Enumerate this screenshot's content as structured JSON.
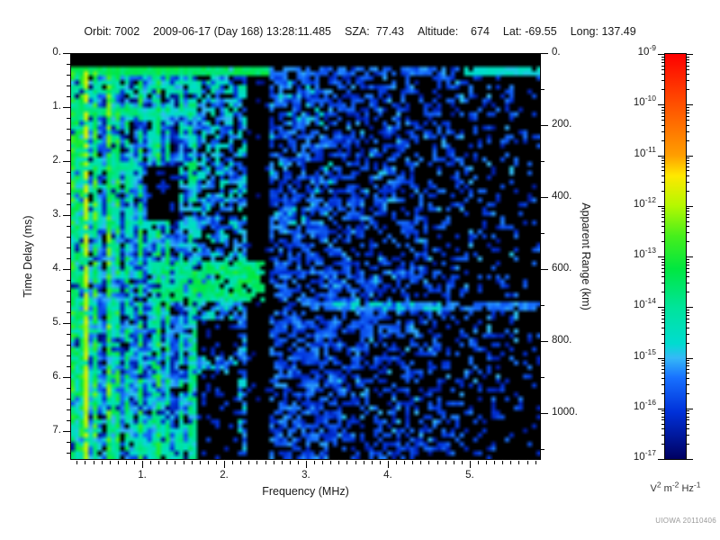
{
  "header": {
    "items": [
      "Orbit: 7002",
      "2009-06-17 (Day 168) 13:28:11.485",
      "SZA:  77.43",
      "Altitude:    674",
      "Lat: -69.55",
      "Long: 137.49"
    ]
  },
  "footer": {
    "watermark": "UIOWA 20110406"
  },
  "chart_data": {
    "type": "heatmap",
    "description": "MARSIS-style active ionospheric sounding ionogram: electric field spectral density vs frequency and time delay",
    "x": {
      "label": "Frequency (MHz)",
      "min": 0.12,
      "max": 5.87,
      "ticks": [
        1,
        2,
        3,
        4,
        5
      ],
      "tick_labels": [
        "1.",
        "2.",
        "3.",
        "4.",
        "5."
      ],
      "minor_step": 0.1
    },
    "y": {
      "label": "Time Delay (ms)",
      "min": 0,
      "max": 7.53,
      "direction": "down",
      "ticks": [
        0,
        1,
        2,
        3,
        4,
        5,
        6,
        7
      ],
      "tick_labels": [
        "0.",
        "1.",
        "2.",
        "3.",
        "4.",
        "5.",
        "6.",
        "7."
      ],
      "minor_step": 0.2
    },
    "y2": {
      "label": "Apparent Range (km)",
      "min": 0,
      "max": 1130,
      "ticks": [
        0,
        200,
        400,
        600,
        800,
        1000
      ],
      "tick_labels": [
        "0.",
        "200.",
        "400.",
        "600.",
        "800.",
        "1000."
      ],
      "minor_step": 100
    },
    "colorbar": {
      "scale": "log",
      "domain_exponents": [
        -17,
        -9
      ],
      "tick_exponents": [
        -9,
        -10,
        -11,
        -12,
        -13,
        -14,
        -15,
        -16,
        -17
      ],
      "unit_parts": [
        [
          "V",
          false
        ],
        [
          "2",
          true
        ],
        [
          " m",
          false
        ],
        [
          "-2",
          true
        ],
        [
          " Hz",
          false
        ],
        [
          "-1",
          true
        ]
      ],
      "stops": [
        {
          "p": 0.0,
          "c": "#000060"
        },
        {
          "p": 0.115,
          "c": "#0030d8"
        },
        {
          "p": 0.2,
          "c": "#1770ff"
        },
        {
          "p": 0.25,
          "c": "#35b9f7"
        },
        {
          "p": 0.285,
          "c": "#00dcd0"
        },
        {
          "p": 0.375,
          "c": "#00e49a"
        },
        {
          "p": 0.47,
          "c": "#00e740"
        },
        {
          "p": 0.55,
          "c": "#46ef1c"
        },
        {
          "p": 0.625,
          "c": "#b4f800"
        },
        {
          "p": 0.7,
          "c": "#ffe800"
        },
        {
          "p": 0.75,
          "c": "#ff9e00"
        },
        {
          "p": 0.875,
          "c": "#ff5000"
        },
        {
          "p": 1.0,
          "c": "#fe0000"
        }
      ]
    },
    "generator": {
      "seed": 7,
      "cells": [
        104,
        90
      ],
      "background": -19,
      "regions": [
        {
          "name": "lowfreq-stripes",
          "type": "striped",
          "f": [
            0.12,
            1.66
          ],
          "t": [
            0.24,
            7.53
          ],
          "v": [
            -16.4,
            -13.6
          ],
          "jitter": 2.0,
          "gap_chance": 0.16,
          "bright_columns": [
            {
              "f": 0.15,
              "v": -13.5
            },
            {
              "f": 0.2,
              "v": -14.0
            },
            {
              "f": 0.33,
              "v": -11.9
            },
            {
              "f": 0.44,
              "v": -13.3
            },
            {
              "f": 0.57,
              "v": -13.1
            },
            {
              "f": 0.69,
              "v": -13.6
            },
            {
              "f": 0.82,
              "v": -14.2
            },
            {
              "f": 1.0,
              "v": -13.7
            },
            {
              "f": 1.17,
              "v": -14.3
            },
            {
              "f": 1.3,
              "v": -14.1
            },
            {
              "f": 1.45,
              "v": -14.4
            },
            {
              "f": 1.58,
              "v": -14.3
            }
          ]
        },
        {
          "name": "cyclotron-bands",
          "type": "hbands",
          "t0": 1.08,
          "dt": 1.0,
          "count": 6,
          "hw": 0.1,
          "f": [
            0.12,
            0.95
          ],
          "v": -13.8,
          "v_decay": 0.35,
          "first_f_max": 1.66
        },
        {
          "name": "mid-noise",
          "type": "noise",
          "f": [
            1.66,
            2.28
          ],
          "t": [
            0.24,
            7.53
          ],
          "density": 0.62,
          "v": [
            -16.2,
            -14.5
          ]
        },
        {
          "name": "mid-cyan",
          "type": "noise",
          "f": [
            1.66,
            2.26
          ],
          "t": [
            0.3,
            4.9
          ],
          "density": 0.1,
          "v": [
            -14.7,
            -14.0
          ]
        },
        {
          "name": "dark-patch-1",
          "type": "fill",
          "f": [
            1.05,
            1.45
          ],
          "t": [
            2.05,
            3.1
          ],
          "keep": 0.15,
          "v": -16.3
        },
        {
          "name": "dark-patch-2",
          "type": "fill",
          "f": [
            1.66,
            2.16
          ],
          "t": [
            4.95,
            5.62
          ],
          "keep": 0.12,
          "v": -16.3
        },
        {
          "name": "dark-patch-3",
          "type": "fill",
          "f": [
            1.66,
            2.18
          ],
          "t": [
            5.95,
            7.53
          ],
          "keep": 0.15,
          "v": -16.1
        },
        {
          "name": "gap-lane",
          "type": "fill",
          "f": [
            2.28,
            2.54
          ],
          "t": [
            0.24,
            7.53
          ],
          "keep": 0.05,
          "v": -16.5
        },
        {
          "name": "bottom-lowfreq-boost",
          "type": "noise",
          "f": [
            0.9,
            1.66
          ],
          "t": [
            6.85,
            7.53
          ],
          "density": 0.6,
          "v": [
            -14.8,
            -13.9
          ]
        },
        {
          "name": "blue-mid",
          "type": "noise",
          "f": [
            2.54,
            3.3
          ],
          "t": [
            0.24,
            7.53
          ],
          "density": 0.6,
          "v": [
            -16.4,
            -15.1
          ]
        },
        {
          "name": "blue-mid-bright",
          "type": "noise",
          "f": [
            2.54,
            3.35
          ],
          "t": [
            0.5,
            3.6
          ],
          "density": 0.08,
          "v": [
            -15.1,
            -14.5
          ]
        },
        {
          "name": "blue-right",
          "type": "noise_fade",
          "f": [
            3.3,
            5.87
          ],
          "t": [
            0.24,
            7.53
          ],
          "density": [
            0.52,
            0.13
          ],
          "v": [
            -16.5,
            -15.3
          ]
        },
        {
          "name": "blue-right-bright",
          "type": "noise_fade",
          "f": [
            3.3,
            5.6
          ],
          "t": [
            0.4,
            7.2
          ],
          "density": [
            0.06,
            0.02
          ],
          "v": [
            -15.2,
            -14.9
          ]
        },
        {
          "name": "green-cluster",
          "type": "noise",
          "f": [
            1.25,
            2.52
          ],
          "t": [
            3.88,
            4.62
          ],
          "density": 0.7,
          "v": [
            -14.6,
            -13.3
          ]
        },
        {
          "name": "green-cluster-core",
          "type": "noise",
          "f": [
            1.6,
            2.42
          ],
          "t": [
            3.95,
            4.5
          ],
          "density": 0.5,
          "v": [
            -13.6,
            -12.9
          ]
        },
        {
          "name": "echo-streak",
          "type": "noise",
          "f": [
            3.02,
            5.87
          ],
          "t": [
            4.56,
            4.78
          ],
          "density": 0.85,
          "v": [
            -15.7,
            -15.1
          ]
        },
        {
          "name": "echo-streak-core",
          "type": "noise",
          "f": [
            3.3,
            4.65
          ],
          "t": [
            4.56,
            4.78
          ],
          "density": 0.5,
          "v": [
            -14.9,
            -14.3
          ]
        },
        {
          "name": "echo-streak-2",
          "type": "noise",
          "f": [
            3.1,
            4.3
          ],
          "t": [
            4.95,
            5.15
          ],
          "density": 0.35,
          "v": [
            -15.9,
            -15.3
          ]
        },
        {
          "name": "top-black",
          "type": "fill",
          "f": [
            0.12,
            5.87
          ],
          "t": [
            0.0,
            0.235
          ],
          "keep": 0,
          "v": -19
        },
        {
          "name": "surface-green",
          "type": "noise",
          "f": [
            0.12,
            2.56
          ],
          "t": [
            0.25,
            0.46
          ],
          "density": 0.95,
          "v": [
            -13.9,
            -13.1
          ]
        },
        {
          "name": "surface-blue",
          "type": "noise",
          "f": [
            2.56,
            4.95
          ],
          "t": [
            0.25,
            0.44
          ],
          "density": 0.6,
          "v": [
            -15.8,
            -15.0
          ]
        },
        {
          "name": "surface-cyan-right",
          "type": "noise",
          "f": [
            4.95,
            5.87
          ],
          "t": [
            0.26,
            0.43
          ],
          "density": 0.95,
          "v": [
            -14.9,
            -14.5
          ]
        },
        {
          "name": "surface-echo2",
          "type": "noise",
          "f": [
            0.12,
            2.3
          ],
          "t": [
            0.5,
            0.78
          ],
          "density": 0.45,
          "v": [
            -14.7,
            -13.9
          ]
        }
      ]
    }
  }
}
